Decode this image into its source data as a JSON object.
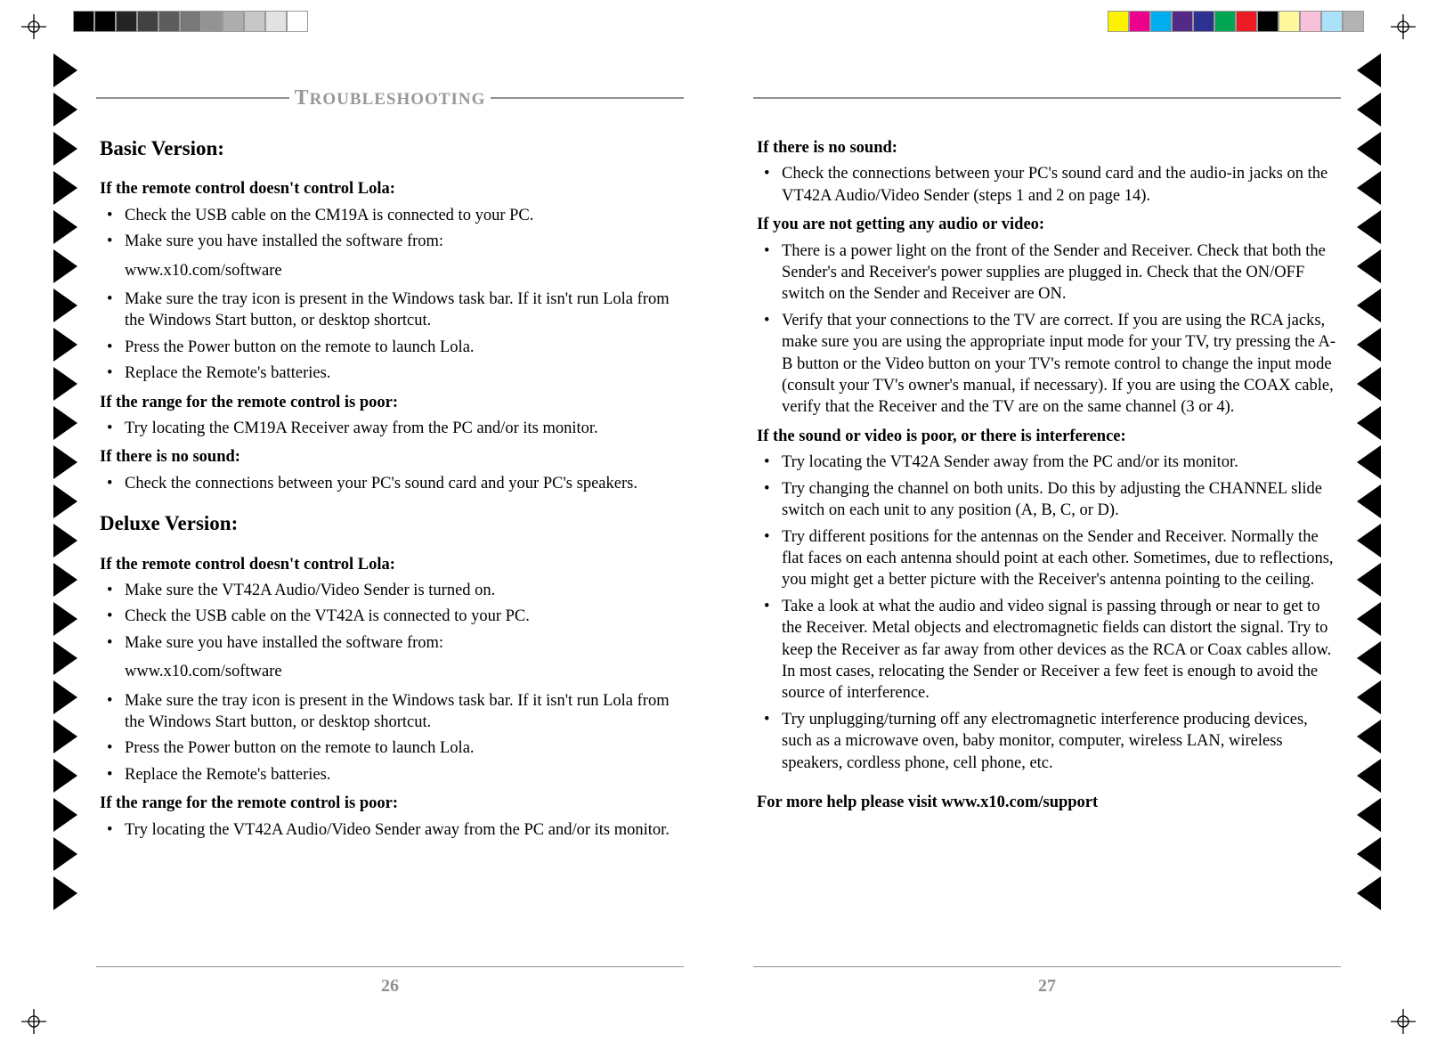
{
  "colors": {
    "gray_text": "#989898",
    "rule": "#8f8f8f",
    "black": "#000000",
    "grayscale_bar": [
      "#000000",
      "#000000",
      "#252525",
      "#424242",
      "#5d5d5d",
      "#787878",
      "#939393",
      "#adadad",
      "#c7c7c7",
      "#e2e2e2",
      "#ffffff"
    ],
    "color_bar": [
      "#fff200",
      "#ec008c",
      "#00aeef",
      "#532a85",
      "#2e3192",
      "#00a651",
      "#ed1c24",
      "#000000",
      "#fff799",
      "#f8c1d9",
      "#abe1fa",
      "#b3b3b3"
    ]
  },
  "layout": {
    "triangle_count": 22
  },
  "left_page": {
    "number": "26",
    "title_lead": "T",
    "title_rest": "ROUBLESHOOTING",
    "basic_heading": "Basic Version:",
    "basic": {
      "h_remote": "If the remote control doesn't control Lola:",
      "items_remote": [
        "Check the USB cable on the CM19A is connected to your PC.",
        "Make sure you have installed the software from:"
      ],
      "software_url": "www.x10.com/software",
      "items_remote_2": [
        "Make sure the tray icon is present in the Windows task bar. If it isn't run Lola from the Windows Start button, or desktop shortcut.",
        "Press the Power button on the remote to launch Lola.",
        "Replace the Remote's batteries."
      ],
      "h_range": "If the range for the remote control is poor:",
      "items_range": [
        "Try locating the CM19A Receiver away from the PC and/or its monitor."
      ],
      "h_sound": "If there is no sound:",
      "items_sound": [
        "Check the connections between your PC's sound card and your PC's speakers."
      ]
    },
    "deluxe_heading": "Deluxe Version:",
    "deluxe": {
      "h_remote": "If the remote control doesn't control Lola:",
      "items_remote": [
        "Make sure the VT42A Audio/Video Sender is turned on.",
        "Check the USB cable on the VT42A is connected to your PC.",
        "Make sure you have installed the software from:"
      ],
      "software_url": "www.x10.com/software",
      "items_remote_2": [
        "Make sure the tray icon is present in the Windows task bar. If it isn't run Lola from the Windows Start button, or desktop shortcut.",
        "Press the Power button on the remote to launch Lola.",
        "Replace the Remote's batteries."
      ],
      "h_range": "If the range for the remote control is poor:",
      "items_range": [
        "Try locating the VT42A Audio/Video Sender away from the PC and/or its monitor."
      ]
    }
  },
  "right_page": {
    "number": "27",
    "h_sound": "If there is no sound:",
    "items_sound": [
      "Check the connections between your PC's sound card and the audio-in jacks on the VT42A Audio/Video Sender (steps 1 and 2 on page 14)."
    ],
    "h_noav": "If you are not getting any audio or video:",
    "items_noav": [
      "There is a power light on the front of the Sender and Receiver. Check that both the Sender's and Receiver's power supplies are plugged in. Check that the ON/OFF switch on the Sender and Receiver are ON.",
      "Verify that your connections to the TV are correct. If you are using the RCA jacks, make sure you are using the appropriate input mode for your TV, try pressing the A-B button or the Video button on your TV's remote control to change the input mode (consult your TV's owner's manual, if necessary). If you are using the COAX cable, verify that the Receiver and the TV are on the same channel (3 or 4)."
    ],
    "h_interf": "If the sound or video is poor, or there is interference:",
    "items_interf": [
      "Try locating the VT42A Sender away from the PC and/or its monitor.",
      "Try changing the channel on both units. Do this by adjusting the CHANNEL slide switch on each unit to any position (A, B, C, or D).",
      "Try different positions for the antennas on the Sender and Receiver. Normally the flat faces on each antenna should point at each other. Sometimes, due to reflections, you might get a better picture with the Receiver's antenna pointing to the ceiling.",
      "Take a look at what the audio and video signal is passing through or near to get to the Receiver. Metal objects and electromagnetic fields can distort the signal. Try to keep the Receiver as far away from other devices as the RCA or Coax cables allow. In most cases, relocating the Sender or Receiver a few feet is enough to avoid the source of interference.",
      "Try unplugging/turning off any electromagnetic interference producing devices, such as a microwave oven, baby monitor, computer, wireless LAN, wireless speakers, cordless phone, cell phone, etc."
    ],
    "final": "For more help please visit www.x10.com/support"
  }
}
